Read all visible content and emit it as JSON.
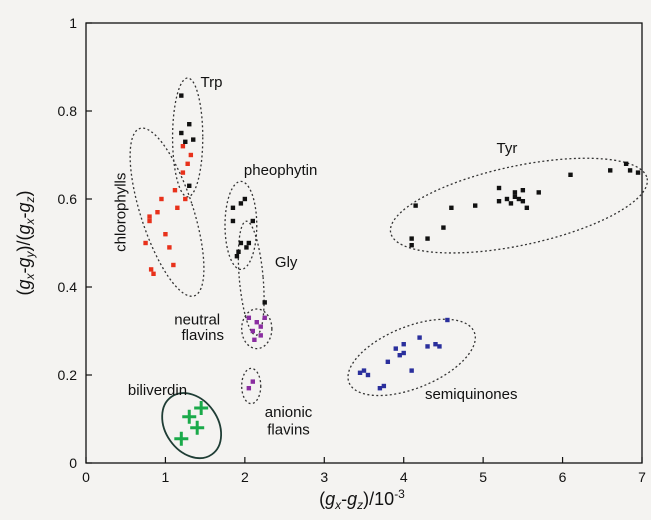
{
  "chart_data": {
    "type": "scatter",
    "title": "",
    "xlabel": "(gx-gz)/10-3",
    "ylabel": "(gx-gy)/(gx-gz)",
    "xlim": [
      0,
      7
    ],
    "ylim": [
      0,
      1
    ],
    "x_ticks": [
      0,
      1,
      2,
      3,
      4,
      5,
      6,
      7
    ],
    "y_ticks": [
      0,
      0.2,
      0.4,
      0.6,
      0.8,
      1
    ],
    "grid": false,
    "colors": {
      "default": "#111111",
      "chlorophylls": "#e8311b",
      "neutral_flavins": "#8a2da0",
      "anionic_flavins": "#8a2da0",
      "semiquinones": "#2a2f9c",
      "biliverdin": "#1aaa4a"
    },
    "series": [
      {
        "name": "Trp",
        "color": "#111111",
        "marker": "square",
        "points": [
          [
            1.2,
            0.835
          ],
          [
            1.2,
            0.75
          ],
          [
            1.25,
            0.73
          ],
          [
            1.3,
            0.77
          ],
          [
            1.35,
            0.735
          ],
          [
            1.3,
            0.63
          ]
        ]
      },
      {
        "name": "chlorophylls",
        "color": "#e8311b",
        "marker": "square",
        "points": [
          [
            1.22,
            0.72
          ],
          [
            1.32,
            0.7
          ],
          [
            1.28,
            0.68
          ],
          [
            1.22,
            0.66
          ],
          [
            1.12,
            0.62
          ],
          [
            1.25,
            0.6
          ],
          [
            1.15,
            0.58
          ],
          [
            0.95,
            0.6
          ],
          [
            0.9,
            0.57
          ],
          [
            0.8,
            0.56
          ],
          [
            0.8,
            0.55
          ],
          [
            1.0,
            0.52
          ],
          [
            0.75,
            0.5
          ],
          [
            1.05,
            0.49
          ],
          [
            0.85,
            0.43
          ],
          [
            1.1,
            0.45
          ],
          [
            0.82,
            0.44
          ]
        ]
      },
      {
        "name": "pheophytin",
        "color": "#111111",
        "marker": "square",
        "points": [
          [
            2.0,
            0.6
          ],
          [
            1.95,
            0.59
          ],
          [
            1.85,
            0.58
          ],
          [
            2.1,
            0.55
          ],
          [
            1.85,
            0.55
          ],
          [
            2.05,
            0.5
          ],
          [
            1.95,
            0.5
          ],
          [
            2.02,
            0.49
          ],
          [
            1.9,
            0.47
          ],
          [
            1.92,
            0.48
          ]
        ]
      },
      {
        "name": "Gly",
        "color": "#111111",
        "marker": "square",
        "points": [
          [
            2.25,
            0.365
          ]
        ]
      },
      {
        "name": "neutral flavins",
        "color": "#8a2da0",
        "marker": "square",
        "points": [
          [
            2.05,
            0.33
          ],
          [
            2.15,
            0.32
          ],
          [
            2.2,
            0.31
          ],
          [
            2.1,
            0.3
          ],
          [
            2.2,
            0.29
          ],
          [
            2.12,
            0.28
          ],
          [
            2.25,
            0.33
          ]
        ]
      },
      {
        "name": "anionic flavins",
        "color": "#8a2da0",
        "marker": "square",
        "points": [
          [
            2.1,
            0.185
          ],
          [
            2.05,
            0.17
          ]
        ]
      },
      {
        "name": "Tyr",
        "color": "#111111",
        "marker": "square",
        "points": [
          [
            4.1,
            0.51
          ],
          [
            4.1,
            0.495
          ],
          [
            4.15,
            0.585
          ],
          [
            4.3,
            0.51
          ],
          [
            4.5,
            0.535
          ],
          [
            4.6,
            0.58
          ],
          [
            4.9,
            0.585
          ],
          [
            5.2,
            0.595
          ],
          [
            5.2,
            0.625
          ],
          [
            5.3,
            0.6
          ],
          [
            5.35,
            0.59
          ],
          [
            5.4,
            0.605
          ],
          [
            5.4,
            0.615
          ],
          [
            5.45,
            0.6
          ],
          [
            5.5,
            0.595
          ],
          [
            5.5,
            0.62
          ],
          [
            5.55,
            0.58
          ],
          [
            5.7,
            0.615
          ],
          [
            6.1,
            0.655
          ],
          [
            6.6,
            0.665
          ],
          [
            6.8,
            0.68
          ],
          [
            6.85,
            0.665
          ],
          [
            6.95,
            0.66
          ]
        ]
      },
      {
        "name": "semiquinones",
        "color": "#2a2f9c",
        "marker": "square",
        "points": [
          [
            3.45,
            0.205
          ],
          [
            3.55,
            0.2
          ],
          [
            3.5,
            0.21
          ],
          [
            3.7,
            0.17
          ],
          [
            3.75,
            0.175
          ],
          [
            3.8,
            0.23
          ],
          [
            3.9,
            0.26
          ],
          [
            3.95,
            0.245
          ],
          [
            4.0,
            0.25
          ],
          [
            4.0,
            0.27
          ],
          [
            4.1,
            0.21
          ],
          [
            4.2,
            0.285
          ],
          [
            4.3,
            0.265
          ],
          [
            4.4,
            0.27
          ],
          [
            4.45,
            0.265
          ],
          [
            4.55,
            0.325
          ]
        ]
      },
      {
        "name": "biliverdin",
        "color": "#1aaa4a",
        "marker": "plus",
        "points": [
          [
            1.45,
            0.125
          ],
          [
            1.3,
            0.105
          ],
          [
            1.4,
            0.08
          ],
          [
            1.2,
            0.055
          ]
        ]
      }
    ],
    "enclosures": [
      {
        "group": "Trp",
        "cx": 1.28,
        "cy": 0.74,
        "rx": 0.19,
        "ry": 0.135,
        "angle_deg": 0,
        "stroke": "#333333",
        "dash": true
      },
      {
        "group": "chlorophylls",
        "cx": 1.02,
        "cy": 0.57,
        "rx": 0.33,
        "ry": 0.2,
        "angle_deg": -18,
        "stroke": "#333333",
        "dash": true
      },
      {
        "group": "pheophytin",
        "cx": 1.95,
        "cy": 0.54,
        "rx": 0.2,
        "ry": 0.1,
        "angle_deg": 0,
        "stroke": "#333333",
        "dash": true
      },
      {
        "group": "Gly",
        "cx": 2.08,
        "cy": 0.42,
        "rx": 0.15,
        "ry": 0.13,
        "angle_deg": -5,
        "stroke": "#333333",
        "dash": true
      },
      {
        "group": "neutral flavins",
        "cx": 2.15,
        "cy": 0.305,
        "rx": 0.19,
        "ry": 0.045,
        "angle_deg": 0,
        "stroke": "#333333",
        "dash": true
      },
      {
        "group": "anionic flavins",
        "cx": 2.08,
        "cy": 0.175,
        "rx": 0.12,
        "ry": 0.04,
        "angle_deg": 0,
        "stroke": "#333333",
        "dash": true
      },
      {
        "group": "Tyr",
        "cx": 5.45,
        "cy": 0.585,
        "rx": 1.65,
        "ry": 0.09,
        "angle_deg": -12,
        "stroke": "#333333",
        "dash": true
      },
      {
        "group": "semiquinones",
        "cx": 4.1,
        "cy": 0.24,
        "rx": 0.85,
        "ry": 0.07,
        "angle_deg": -22,
        "stroke": "#333333",
        "dash": true
      },
      {
        "group": "biliverdin",
        "cx": 1.33,
        "cy": 0.085,
        "rx": 0.33,
        "ry": 0.08,
        "angle_deg": -35,
        "stroke": "#1f3d35",
        "dash": false
      }
    ],
    "labels": [
      {
        "text": "Trp",
        "x": 1.58,
        "y": 0.855,
        "color": "#111111",
        "rotate": 0
      },
      {
        "text": "chlorophylls",
        "x": 0.5,
        "y": 0.57,
        "color": "#111111",
        "rotate": -90
      },
      {
        "text": "pheophytin",
        "x": 2.45,
        "y": 0.655,
        "color": "#111111",
        "rotate": 0
      },
      {
        "text": "Gly",
        "x": 2.52,
        "y": 0.445,
        "color": "#111111",
        "rotate": 0
      },
      {
        "text": "neutral",
        "x": 1.4,
        "y": 0.315,
        "color": "#111111",
        "rotate": 0
      },
      {
        "text": "flavins",
        "x": 1.47,
        "y": 0.28,
        "color": "#111111",
        "rotate": 0
      },
      {
        "text": "Tyr",
        "x": 5.3,
        "y": 0.705,
        "color": "#111111",
        "rotate": 0
      },
      {
        "text": "biliverdin",
        "x": 0.9,
        "y": 0.155,
        "color": "#1aaa4a",
        "rotate": 0
      },
      {
        "text": "semiquinones",
        "x": 4.85,
        "y": 0.145,
        "color": "#111111",
        "rotate": 0
      },
      {
        "text": "anionic",
        "x": 2.55,
        "y": 0.105,
        "color": "#111111",
        "rotate": 0
      },
      {
        "text": "flavins",
        "x": 2.55,
        "y": 0.065,
        "color": "#111111",
        "rotate": 0
      }
    ]
  }
}
